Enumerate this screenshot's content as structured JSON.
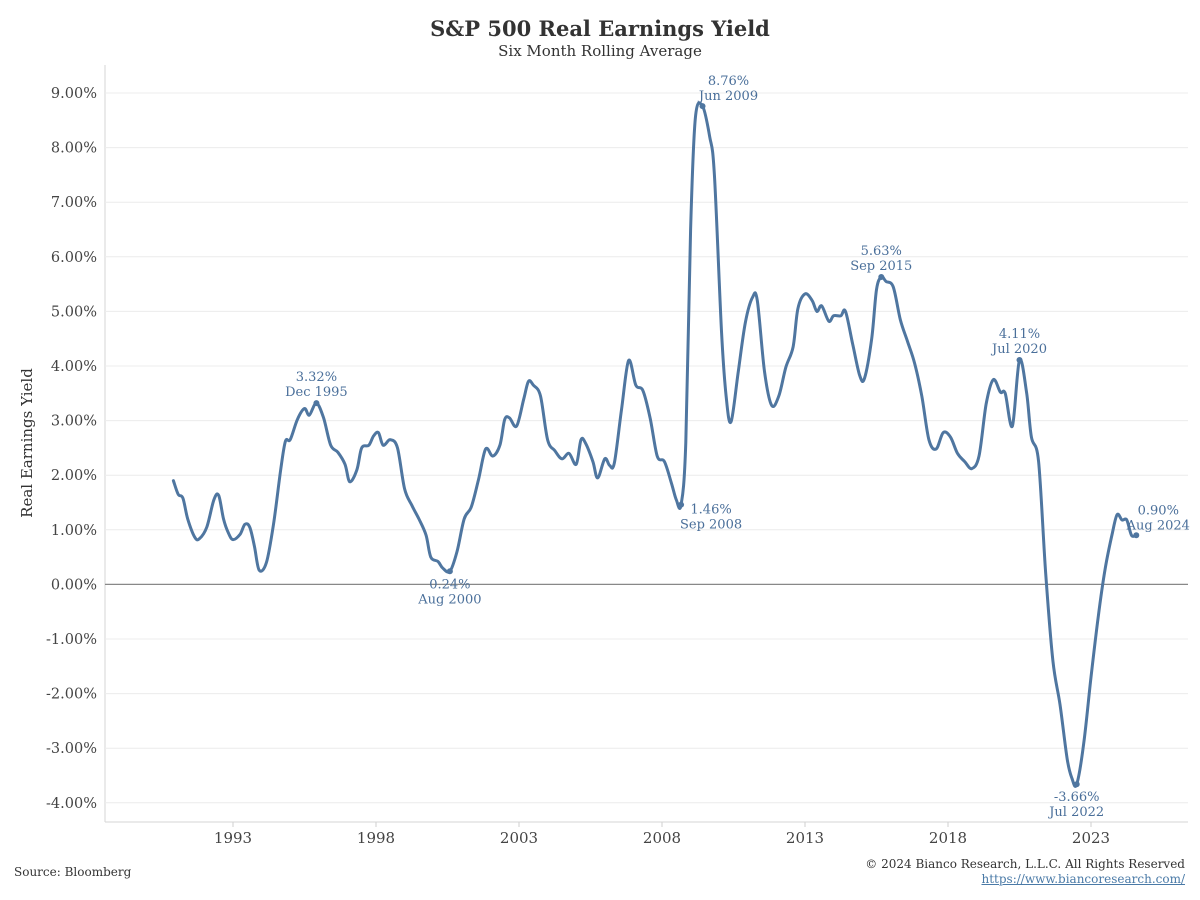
{
  "header": {
    "title": "S&P 500 Real Earnings Yield",
    "subtitle": "Six Month Rolling Average"
  },
  "footer": {
    "source": "Source: Bloomberg",
    "copyright": "© 2024 Bianco Research, L.L.C. All Rights Reserved",
    "url": "https://www.biancoresearch.com/"
  },
  "colors": {
    "line": "#4f76a0",
    "annotation": "#4a6f9a",
    "zero_line": "#888888",
    "grid": "#ececec"
  },
  "chart_data": {
    "type": "line",
    "title": "S&P 500 Real Earnings Yield",
    "subtitle": "Six Month Rolling Average",
    "ylabel": "Real Earnings Yield",
    "xlabel": "",
    "ylim": [
      -4.0,
      9.0
    ],
    "y_ticks": [
      "9.00%",
      "8.00%",
      "7.00%",
      "6.00%",
      "5.00%",
      "4.00%",
      "3.00%",
      "2.00%",
      "1.00%",
      "0.00%",
      "-1.00%",
      "-2.00%",
      "-3.00%",
      "-4.00%"
    ],
    "x_ticks": [
      "1993",
      "1998",
      "2003",
      "2008",
      "2013",
      "2018",
      "2023"
    ],
    "grid": "horizontal",
    "series": [
      {
        "points": [
          [
            "1990-12",
            1.9
          ],
          [
            "1991-02",
            1.65
          ],
          [
            "1991-04",
            1.58
          ],
          [
            "1991-06",
            1.2
          ],
          [
            "1991-09",
            0.86
          ],
          [
            "1991-11",
            0.84
          ],
          [
            "1992-02",
            1.05
          ],
          [
            "1992-05",
            1.55
          ],
          [
            "1992-07",
            1.63
          ],
          [
            "1992-09",
            1.2
          ],
          [
            "1992-11",
            0.95
          ],
          [
            "1993-01",
            0.82
          ],
          [
            "1993-04",
            0.92
          ],
          [
            "1993-06",
            1.1
          ],
          [
            "1993-08",
            1.05
          ],
          [
            "1993-10",
            0.7
          ],
          [
            "1993-12",
            0.26
          ],
          [
            "1994-03",
            0.4
          ],
          [
            "1994-06",
            1.1
          ],
          [
            "1994-09",
            2.1
          ],
          [
            "1994-11",
            2.62
          ],
          [
            "1995-01",
            2.65
          ],
          [
            "1995-04",
            3.02
          ],
          [
            "1995-07",
            3.22
          ],
          [
            "1995-09",
            3.1
          ],
          [
            "1995-12",
            3.32
          ],
          [
            "1996-03",
            3.05
          ],
          [
            "1996-06",
            2.55
          ],
          [
            "1996-09",
            2.42
          ],
          [
            "1996-12",
            2.2
          ],
          [
            "1997-02",
            1.88
          ],
          [
            "1997-05",
            2.1
          ],
          [
            "1997-07",
            2.5
          ],
          [
            "1997-10",
            2.55
          ],
          [
            "1997-12",
            2.72
          ],
          [
            "1998-02",
            2.78
          ],
          [
            "1998-04",
            2.55
          ],
          [
            "1998-07",
            2.65
          ],
          [
            "1998-10",
            2.5
          ],
          [
            "1999-01",
            1.75
          ],
          [
            "1999-04",
            1.45
          ],
          [
            "1999-07",
            1.2
          ],
          [
            "1999-10",
            0.9
          ],
          [
            "1999-12",
            0.5
          ],
          [
            "2000-03",
            0.42
          ],
          [
            "2000-05",
            0.3
          ],
          [
            "2000-08",
            0.24
          ],
          [
            "2000-11",
            0.6
          ],
          [
            "2001-02",
            1.2
          ],
          [
            "2001-05",
            1.42
          ],
          [
            "2001-08",
            1.92
          ],
          [
            "2001-11",
            2.48
          ],
          [
            "2002-02",
            2.35
          ],
          [
            "2002-05",
            2.55
          ],
          [
            "2002-07",
            3.02
          ],
          [
            "2002-09",
            3.05
          ],
          [
            "2002-12",
            2.9
          ],
          [
            "2003-03",
            3.4
          ],
          [
            "2003-05",
            3.72
          ],
          [
            "2003-07",
            3.65
          ],
          [
            "2003-10",
            3.45
          ],
          [
            "2004-01",
            2.65
          ],
          [
            "2004-04",
            2.45
          ],
          [
            "2004-07",
            2.3
          ],
          [
            "2004-10",
            2.4
          ],
          [
            "2005-01",
            2.2
          ],
          [
            "2005-03",
            2.65
          ],
          [
            "2005-05",
            2.58
          ],
          [
            "2005-08",
            2.25
          ],
          [
            "2005-10",
            1.95
          ],
          [
            "2006-01",
            2.3
          ],
          [
            "2006-03",
            2.18
          ],
          [
            "2006-05",
            2.22
          ],
          [
            "2006-08",
            3.2
          ],
          [
            "2006-11",
            4.1
          ],
          [
            "2007-02",
            3.65
          ],
          [
            "2007-05",
            3.55
          ],
          [
            "2007-08",
            3.05
          ],
          [
            "2007-11",
            2.35
          ],
          [
            "2008-02",
            2.25
          ],
          [
            "2008-05",
            1.85
          ],
          [
            "2008-07",
            1.55
          ],
          [
            "2008-09",
            1.46
          ],
          [
            "2008-11",
            2.6
          ],
          [
            "2009-01",
            6.5
          ],
          [
            "2009-03",
            8.55
          ],
          [
            "2009-06",
            8.76
          ],
          [
            "2009-09",
            8.2
          ],
          [
            "2009-11",
            7.5
          ],
          [
            "2010-02",
            4.6
          ],
          [
            "2010-04",
            3.4
          ],
          [
            "2010-06",
            2.98
          ],
          [
            "2010-09",
            3.9
          ],
          [
            "2010-12",
            4.8
          ],
          [
            "2011-03",
            5.26
          ],
          [
            "2011-05",
            5.2
          ],
          [
            "2011-08",
            3.9
          ],
          [
            "2011-11",
            3.28
          ],
          [
            "2012-02",
            3.45
          ],
          [
            "2012-05",
            3.98
          ],
          [
            "2012-08",
            4.35
          ],
          [
            "2012-10",
            5.05
          ],
          [
            "2013-01",
            5.32
          ],
          [
            "2013-04",
            5.2
          ],
          [
            "2013-06",
            5.0
          ],
          [
            "2013-08",
            5.1
          ],
          [
            "2013-11",
            4.82
          ],
          [
            "2014-01",
            4.92
          ],
          [
            "2014-04",
            4.92
          ],
          [
            "2014-06",
            5.0
          ],
          [
            "2014-09",
            4.4
          ],
          [
            "2014-12",
            3.82
          ],
          [
            "2015-02",
            3.78
          ],
          [
            "2015-05",
            4.5
          ],
          [
            "2015-07",
            5.4
          ],
          [
            "2015-09",
            5.63
          ],
          [
            "2015-11",
            5.55
          ],
          [
            "2016-02",
            5.45
          ],
          [
            "2016-05",
            4.85
          ],
          [
            "2016-08",
            4.45
          ],
          [
            "2016-11",
            4.05
          ],
          [
            "2017-02",
            3.45
          ],
          [
            "2017-05",
            2.65
          ],
          [
            "2017-08",
            2.48
          ],
          [
            "2017-11",
            2.78
          ],
          [
            "2018-02",
            2.7
          ],
          [
            "2018-05",
            2.4
          ],
          [
            "2018-08",
            2.25
          ],
          [
            "2018-11",
            2.12
          ],
          [
            "2019-02",
            2.35
          ],
          [
            "2019-05",
            3.3
          ],
          [
            "2019-08",
            3.75
          ],
          [
            "2019-11",
            3.52
          ],
          [
            "2020-01",
            3.5
          ],
          [
            "2020-04",
            2.9
          ],
          [
            "2020-07",
            4.11
          ],
          [
            "2020-10",
            3.5
          ],
          [
            "2020-12",
            2.7
          ],
          [
            "2021-03",
            2.25
          ],
          [
            "2021-06",
            0.2
          ],
          [
            "2021-09",
            -1.4
          ],
          [
            "2021-12",
            -2.2
          ],
          [
            "2022-03",
            -3.2
          ],
          [
            "2022-05",
            -3.55
          ],
          [
            "2022-07",
            -3.66
          ],
          [
            "2022-10",
            -2.9
          ],
          [
            "2023-01",
            -1.7
          ],
          [
            "2023-04",
            -0.6
          ],
          [
            "2023-07",
            0.3
          ],
          [
            "2023-10",
            0.95
          ],
          [
            "2023-12",
            1.28
          ],
          [
            "2024-02",
            1.18
          ],
          [
            "2024-04",
            1.18
          ],
          [
            "2024-06",
            0.9
          ],
          [
            "2024-08",
            0.9
          ]
        ]
      }
    ],
    "annotations": [
      {
        "value": "3.32%",
        "date": "Dec 1995",
        "x": "1995-12",
        "y": 3.32,
        "pos": "above"
      },
      {
        "value": "0.24%",
        "date": "Aug 2000",
        "x": "2000-08",
        "y": 0.24,
        "pos": "below"
      },
      {
        "value": "1.46%",
        "date": "Sep 2008",
        "x": "2008-09",
        "y": 1.46,
        "pos": "below-right"
      },
      {
        "value": "8.76%",
        "date": "Jun 2009",
        "x": "2009-06",
        "y": 8.76,
        "pos": "above-right"
      },
      {
        "value": "5.63%",
        "date": "Sep 2015",
        "x": "2015-09",
        "y": 5.63,
        "pos": "above"
      },
      {
        "value": "4.11%",
        "date": "Jul 2020",
        "x": "2020-07",
        "y": 4.11,
        "pos": "above"
      },
      {
        "value": "-3.66%",
        "date": "Jul 2022",
        "x": "2022-07",
        "y": -3.66,
        "pos": "below"
      },
      {
        "value": "0.90%",
        "date": "Aug 2024",
        "x": "2024-08",
        "y": 0.9,
        "pos": "right"
      }
    ]
  }
}
